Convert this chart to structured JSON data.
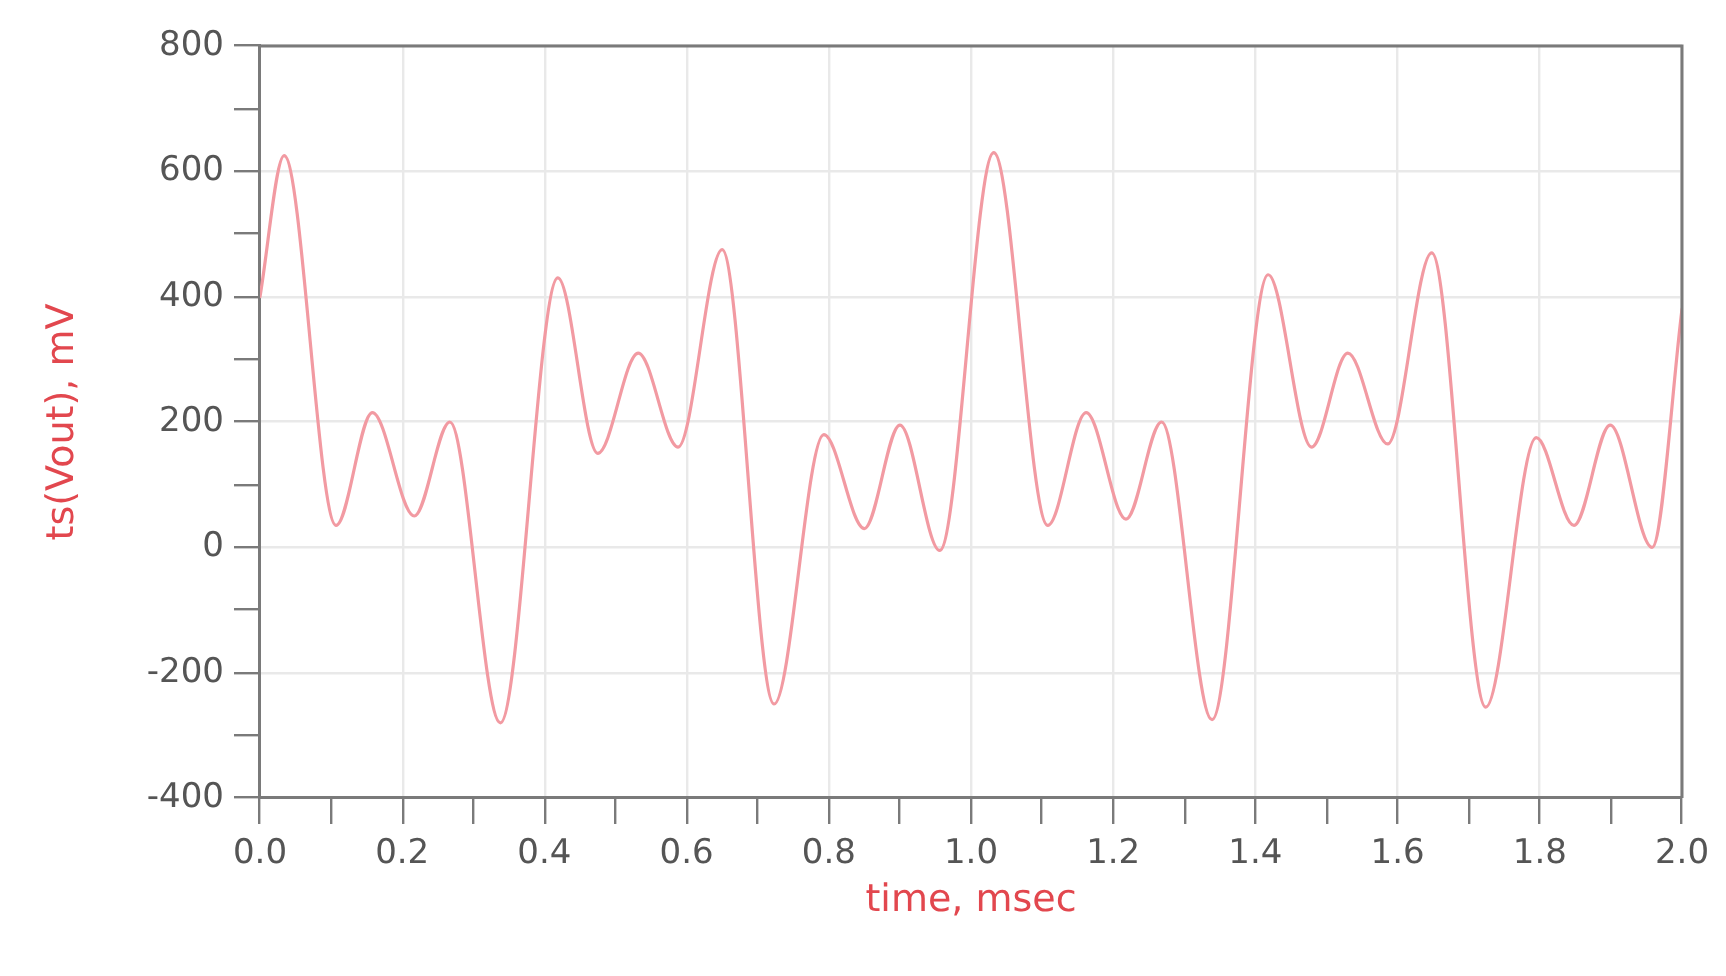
{
  "chart_data": {
    "type": "line",
    "xlabel": "time, msec",
    "ylabel": "ts(Vout), mV",
    "x": [
      0,
      0.034,
      0.107,
      0.158,
      0.217,
      0.267,
      0.338,
      0.419,
      0.475,
      0.532,
      0.588,
      0.65,
      0.723,
      0.793,
      0.85,
      0.9,
      0.956,
      1.032,
      1.108,
      1.162,
      1.218,
      1.268,
      1.339,
      1.418,
      1.479,
      1.53,
      1.586,
      1.648,
      1.724,
      1.795,
      1.848,
      1.899,
      1.958,
      2
    ],
    "series": [
      {
        "color": "#f29aa2",
        "values": [
          400,
          625,
          35,
          215,
          50,
          200,
          -280,
          430,
          150,
          310,
          160,
          475,
          -250,
          180,
          30,
          195,
          -5,
          630,
          35,
          215,
          45,
          200,
          -275,
          435,
          160,
          310,
          165,
          470,
          -255,
          175,
          35,
          195,
          0,
          380
        ]
      }
    ],
    "xlim": [
      0,
      2
    ],
    "ylim": [
      -400,
      800
    ],
    "xticks": [
      {
        "value": 0,
        "label": "0.0"
      },
      {
        "value": 0.1,
        "label": null
      },
      0.2,
      {
        "value": 0.3,
        "label": null
      },
      0.4,
      {
        "value": 0.5,
        "label": null
      },
      0.6,
      {
        "value": 0.7,
        "label": null
      },
      0.8,
      {
        "value": 0.9,
        "label": null
      },
      {
        "value": 1,
        "label": "1.0"
      },
      {
        "value": 1.1,
        "label": null
      },
      1.2,
      {
        "value": 1.3,
        "label": null
      },
      1.4,
      {
        "value": 1.5,
        "label": null
      },
      1.6,
      {
        "value": 1.7,
        "label": null
      },
      1.8,
      {
        "value": 1.9,
        "label": null
      },
      {
        "value": 2,
        "label": "2.0"
      }
    ],
    "yticks": [
      -400,
      {
        "value": -300,
        "label": null
      },
      -200,
      {
        "value": -100,
        "label": null
      },
      0,
      {
        "value": 100,
        "label": null
      },
      200,
      {
        "value": 300,
        "label": null
      },
      400,
      {
        "value": 500,
        "label": null
      },
      600,
      {
        "value": 700,
        "label": null
      },
      800
    ],
    "grid": true,
    "legend": false,
    "marker": "none",
    "line_style": "solid"
  }
}
